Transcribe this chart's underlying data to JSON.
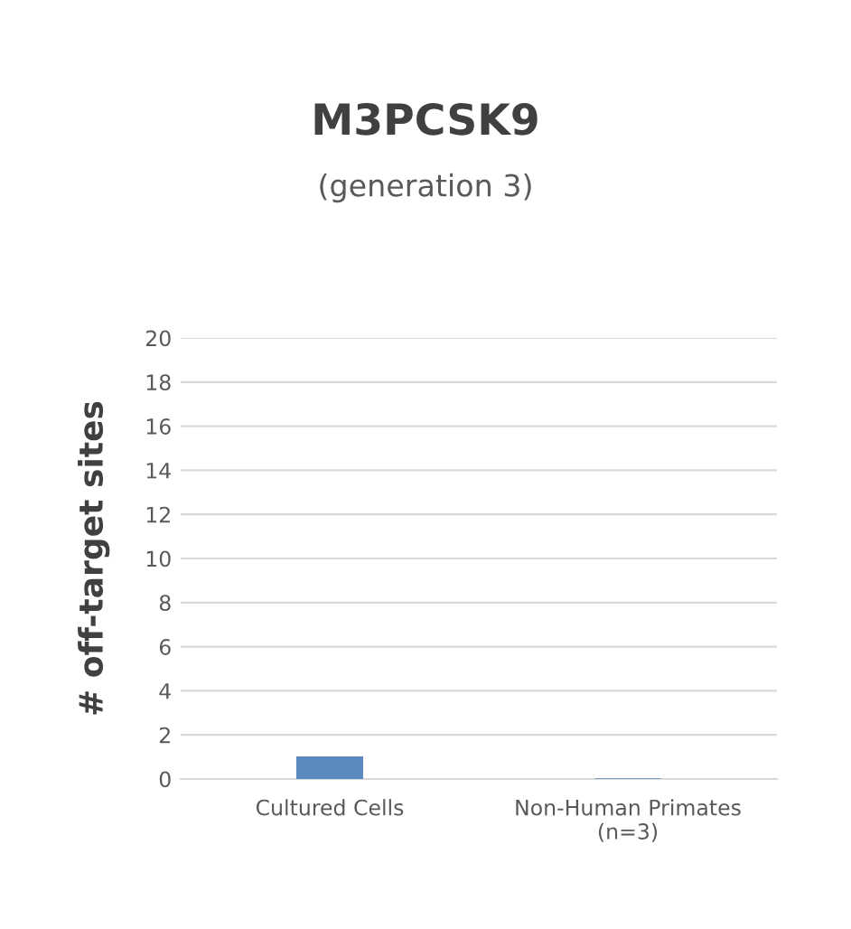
{
  "chart_data": {
    "type": "bar",
    "title": "M3PCSK9",
    "subtitle": "(generation 3)",
    "ylabel": "# off-target sites",
    "categories": [
      "Cultured Cells",
      "Non-Human Primates\n(n=3)"
    ],
    "series": [
      {
        "color": "#5b8ac0",
        "values": [
          1,
          0
        ]
      }
    ],
    "ylim": [
      0,
      20
    ],
    "yticks": [
      0,
      2,
      4,
      6,
      8,
      10,
      12,
      14,
      16,
      18,
      20
    ],
    "grid": "y"
  }
}
